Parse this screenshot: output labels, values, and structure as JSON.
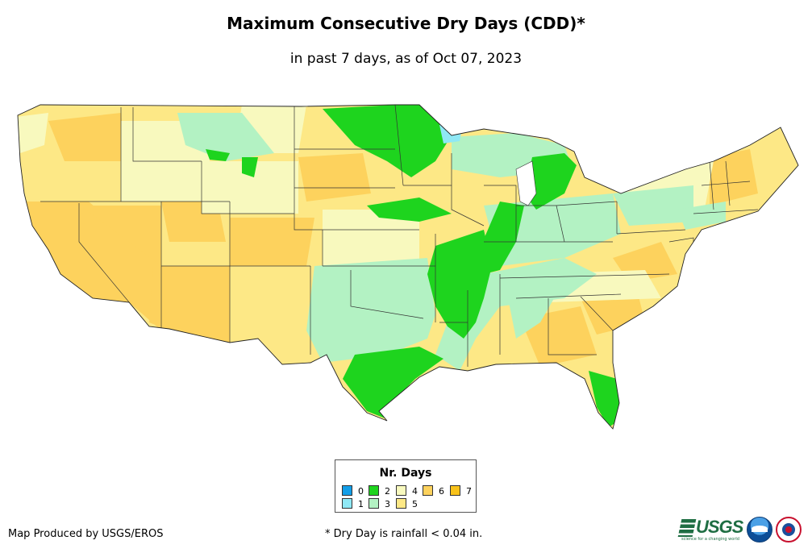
{
  "header": {
    "title": "Maximum Consecutive Dry Days (CDD)*",
    "subtitle": "in past 7 days, as of Oct 07, 2023"
  },
  "legend": {
    "title": "Nr. Days",
    "items": [
      {
        "label": "0",
        "color": "#129ee8"
      },
      {
        "label": "1",
        "color": "#8fe8f5"
      },
      {
        "label": "2",
        "color": "#1ed41e"
      },
      {
        "label": "3",
        "color": "#b3f2c3"
      },
      {
        "label": "4",
        "color": "#f8f9be"
      },
      {
        "label": "5",
        "color": "#fde886"
      },
      {
        "label": "6",
        "color": "#fdd25d"
      },
      {
        "label": "7",
        "color": "#f8c21a"
      }
    ]
  },
  "footer": {
    "credit": "Map Produced by USGS/EROS",
    "note": "* Dry Day is rainfall < 0.04 in."
  },
  "logos": {
    "usgs": {
      "name": "usgs-logo",
      "text": "USGS",
      "tagline": "science for a changing world"
    },
    "noaa": {
      "name": "noaa-logo"
    },
    "nws": {
      "name": "nws-logo"
    }
  },
  "map": {
    "region": "Contiguous United States",
    "palette": {
      "tan": "#fdd25d",
      "yellow": "#fde886",
      "cream": "#f8f9be",
      "mint": "#b3f2c3",
      "green": "#1ed41e",
      "cyan": "#8fe8f5"
    }
  }
}
